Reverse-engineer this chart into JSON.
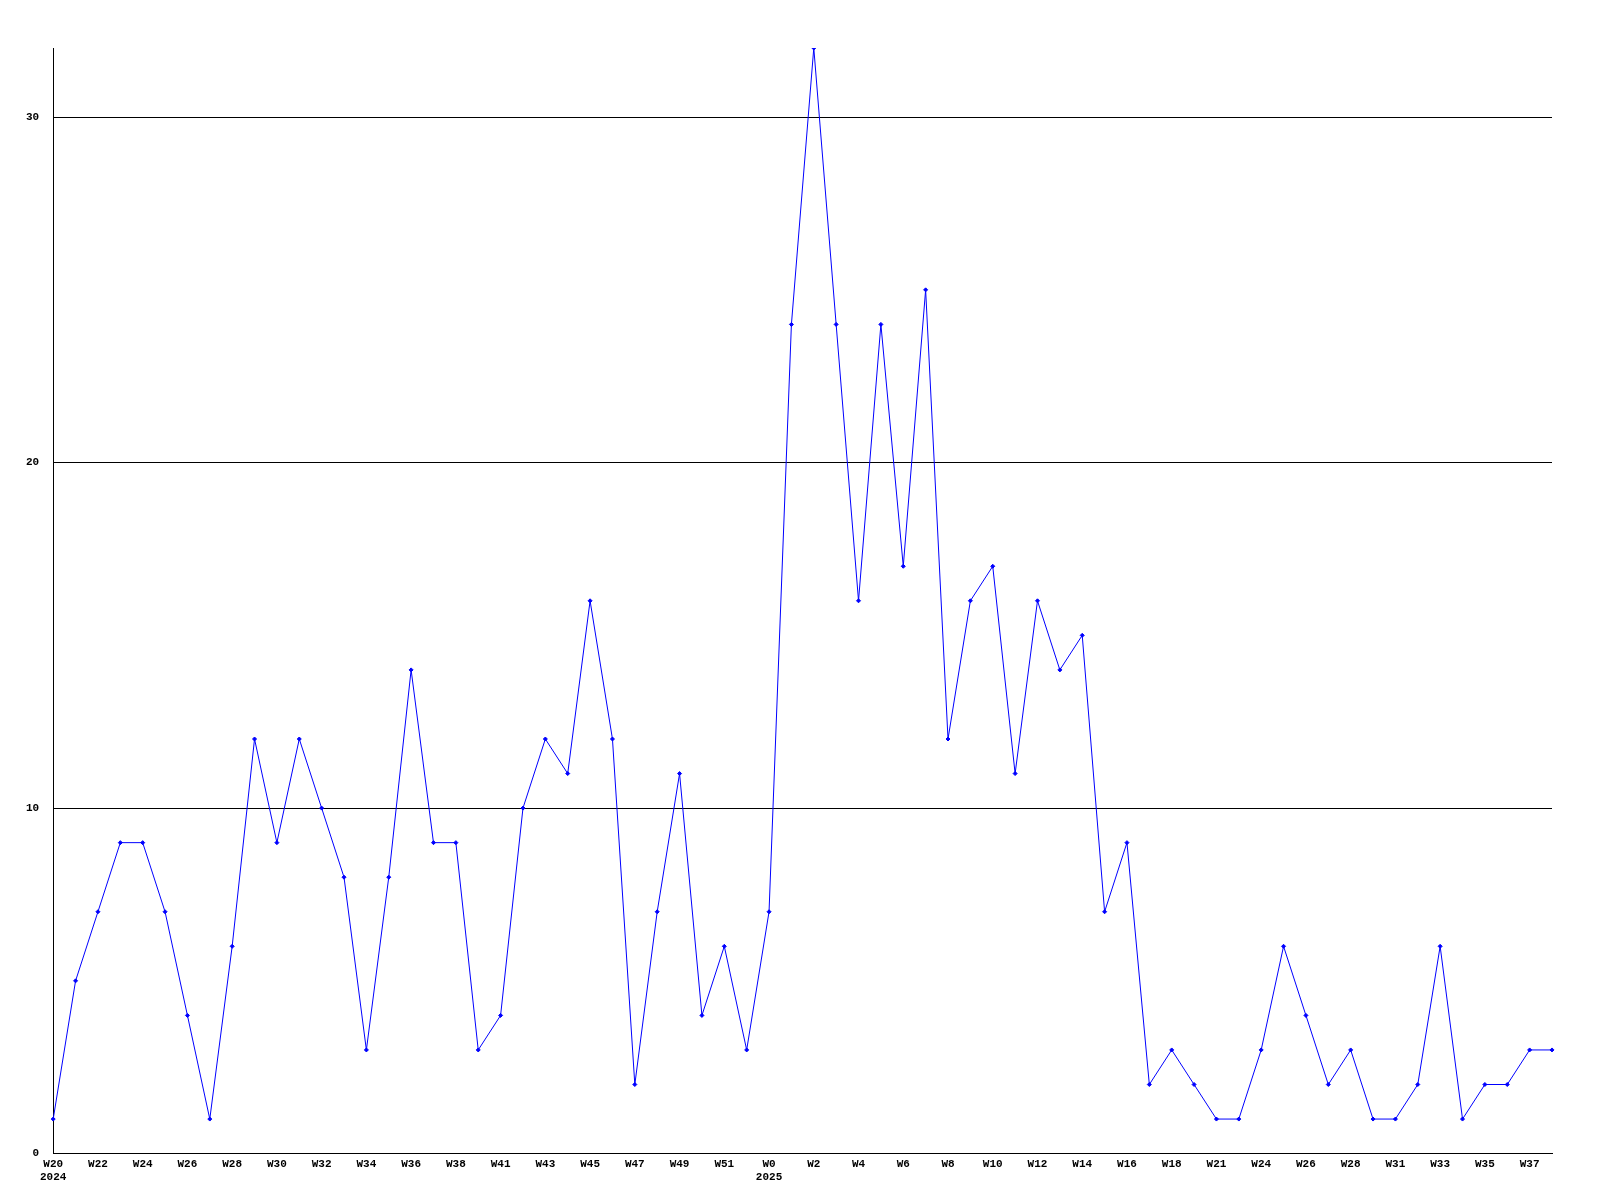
{
  "chart_data": {
    "type": "line",
    "categories": [
      "W20\n2024",
      null,
      "W22",
      null,
      "W24",
      null,
      "W26",
      null,
      "W28",
      null,
      "W30",
      null,
      "W32",
      null,
      "W34",
      null,
      "W36",
      null,
      "W38",
      null,
      "W41",
      null,
      "W43",
      null,
      "W45",
      null,
      "W47",
      null,
      "W49",
      null,
      "W51",
      null,
      "W0\n2025",
      null,
      "W2",
      null,
      "W4",
      null,
      "W6",
      null,
      "W8",
      null,
      "W10",
      null,
      "W12",
      null,
      "W14",
      null,
      "W16",
      null,
      "W18",
      null,
      "W21",
      null,
      "W24",
      null,
      "W26",
      null,
      "W28",
      null,
      "W31",
      null,
      "W33",
      null,
      "W35",
      null,
      "W37",
      null
    ],
    "series": [
      {
        "color": "#0000ff",
        "values": [
          1,
          5,
          7,
          9,
          9,
          7,
          4,
          1,
          6,
          12,
          9,
          12,
          10,
          8,
          3,
          8,
          14,
          9,
          9,
          3,
          4,
          10,
          12,
          11,
          16,
          12,
          2,
          7,
          11,
          4,
          6,
          3,
          7,
          24,
          32,
          24,
          16,
          24,
          17,
          25,
          12,
          16,
          17,
          11,
          16,
          14,
          15,
          7,
          9,
          2,
          3,
          2,
          1,
          1,
          3,
          6,
          4,
          2,
          3,
          1,
          1,
          2,
          6,
          1,
          2,
          2,
          3,
          3
        ]
      }
    ],
    "ylim": [
      0,
      32
    ],
    "yticks": [
      0,
      10,
      20,
      30
    ],
    "grid": "y",
    "marker": "diamond",
    "line_style": "solid",
    "legend": false
  }
}
